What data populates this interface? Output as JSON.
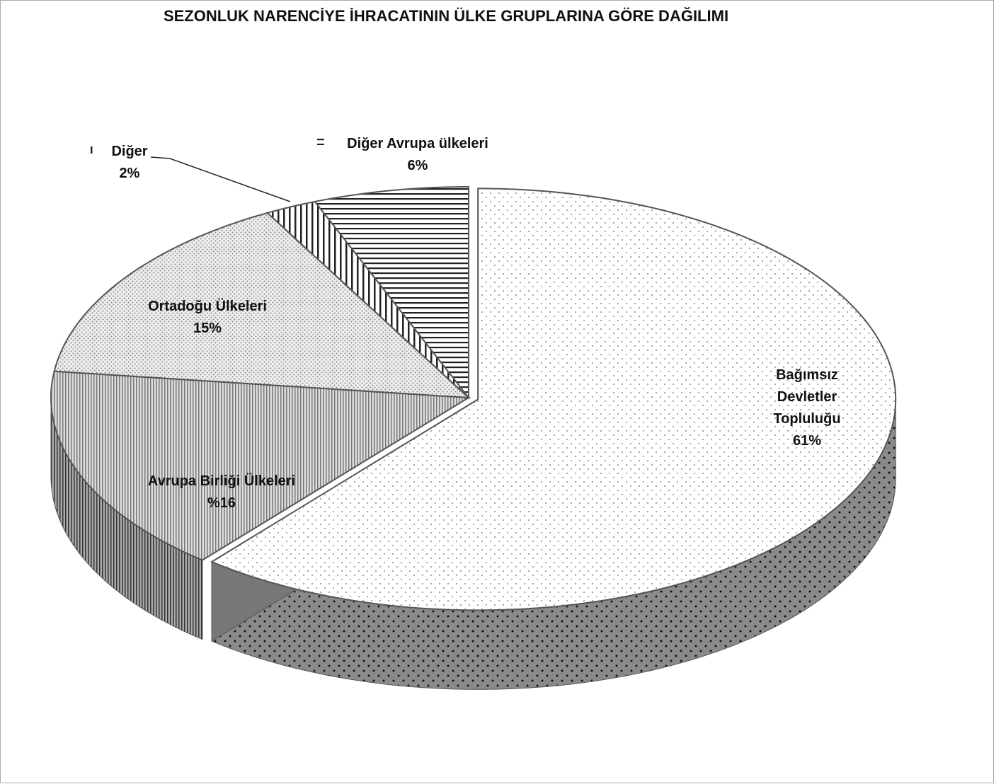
{
  "chart_data": {
    "type": "pie",
    "title": "SEZONLUK NARENCİYE İHRACATININ ÜLKE GRUPLARINA GÖRE DAĞILIMI",
    "categories": [
      "Bağımsız Devletler Topluluğu",
      "Avrupa Birliği Ülkeleri",
      "Ortadoğu Ülkeleri",
      "Diğer",
      "Diğer Avrupa ülkeleri"
    ],
    "values": [
      61,
      16,
      15,
      2,
      6
    ],
    "value_labels": [
      "61%",
      "%16",
      "15%",
      "2%",
      "6%"
    ]
  }
}
